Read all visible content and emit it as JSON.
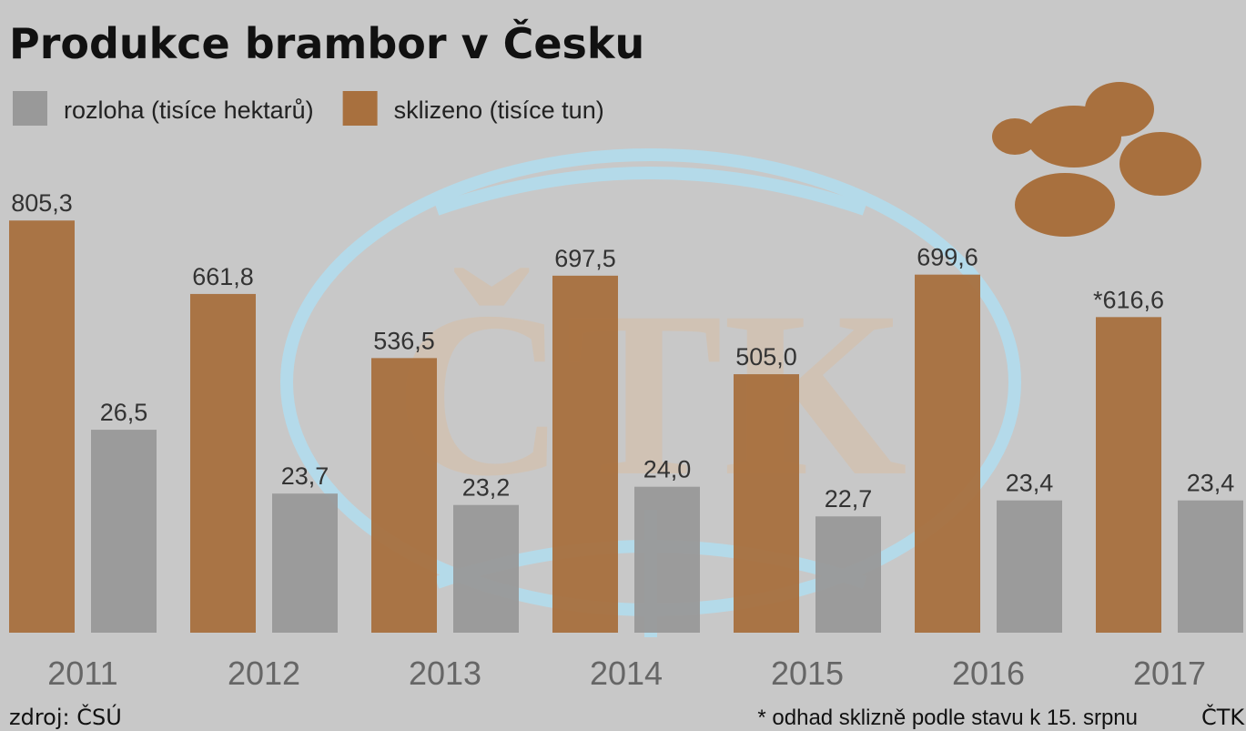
{
  "chart_data": {
    "type": "bar",
    "title": "Produkce brambor v Česku",
    "categories": [
      "2011",
      "2012",
      "2013",
      "2014",
      "2015",
      "2016",
      "2017"
    ],
    "series": [
      {
        "name": "sklizeno (tisíce tun)",
        "color": "#a8703e",
        "values": [
          805.3,
          661.8,
          536.5,
          697.5,
          505.0,
          699.6,
          616.6
        ],
        "value_labels": [
          "805,3",
          "661,8",
          "536,5",
          "697,5",
          "505,0",
          "699,6",
          "*616,6"
        ]
      },
      {
        "name": "rozloha (tisíce hektarů)",
        "color": "#999999",
        "axis": "y2",
        "values": [
          26.5,
          23.7,
          23.2,
          24.0,
          22.7,
          23.4,
          23.4
        ],
        "value_labels": [
          "26,5",
          "23,7",
          "23,2",
          "24,0",
          "22,7",
          "23,4",
          "23,4"
        ]
      }
    ],
    "ylim": [
      0,
      900
    ],
    "y2lim": [
      17.6,
      37.8
    ],
    "source": "zdroj: ČSÚ",
    "note": "* odhad sklizně podle stavu k 15. srpnu",
    "credit": "ČTK"
  }
}
